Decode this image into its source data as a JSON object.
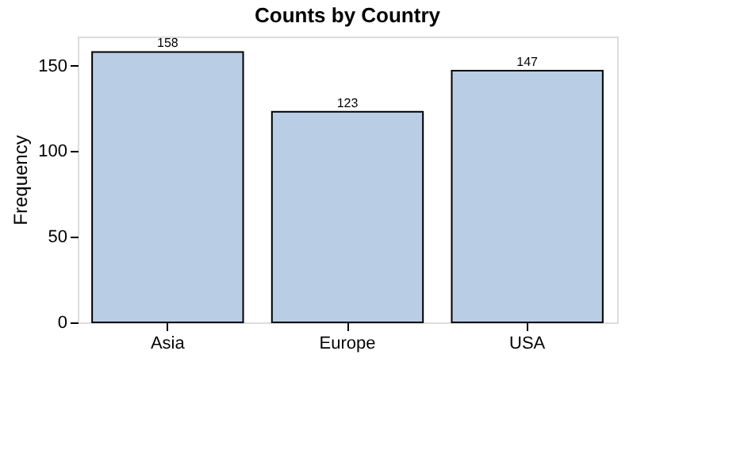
{
  "chart_data": {
    "type": "bar",
    "title": "Counts by Country",
    "ylabel": "Frequency",
    "categories": [
      "Asia",
      "Europe",
      "USA"
    ],
    "values": [
      158,
      123,
      147
    ],
    "color": "#b9cde5",
    "ylim": [
      0,
      167
    ],
    "yticks": [
      0,
      50,
      100,
      150
    ],
    "grid": false,
    "data_labels": true
  }
}
